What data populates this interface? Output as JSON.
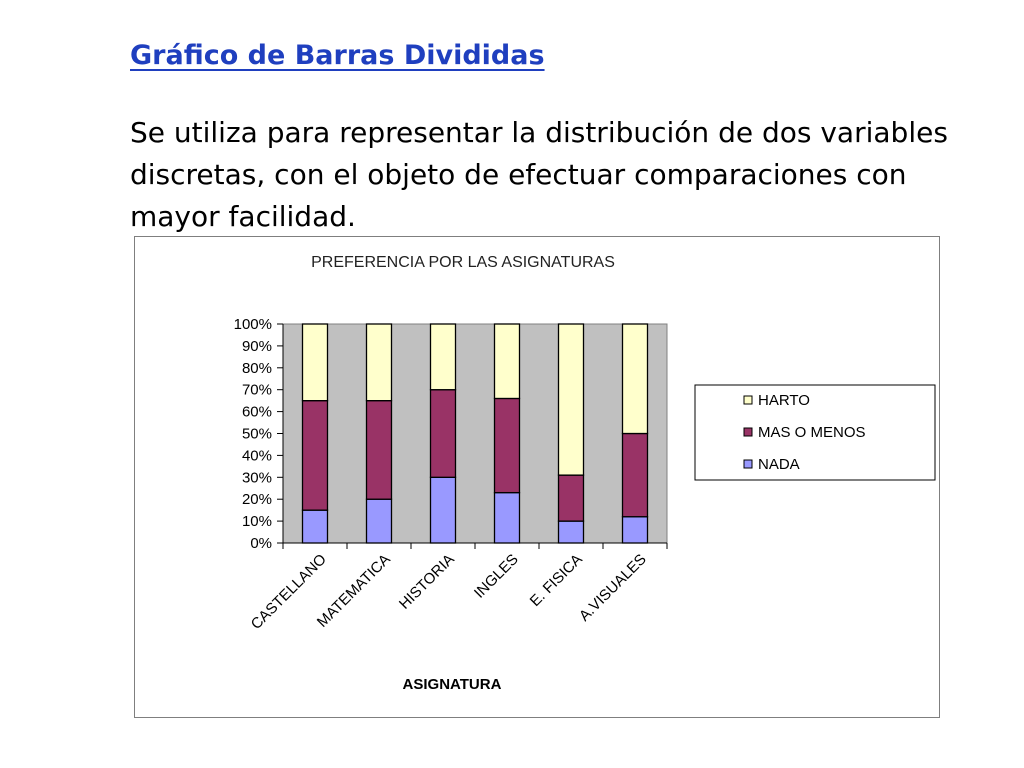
{
  "slide": {
    "title": "Gráfico de Barras Divididas",
    "body": "Se utiliza para representar la distribución de dos variables discretas, con el objeto de efectuar comparaciones con mayor facilidad."
  },
  "chart_data": {
    "type": "bar",
    "stacked": true,
    "percent_stacked": true,
    "title": "PREFERENCIA POR LAS ASIGNATURAS",
    "xlabel": "ASIGNATURA",
    "ylabel": "",
    "ylim": [
      0,
      100
    ],
    "yticks": [
      "0%",
      "10%",
      "20%",
      "30%",
      "40%",
      "50%",
      "60%",
      "70%",
      "80%",
      "90%",
      "100%"
    ],
    "categories": [
      "CASTELLANO",
      "MATEMATICA",
      "HISTORIA",
      "INGLES",
      "E. FISICA",
      "A.VISUALES"
    ],
    "series": [
      {
        "name": "NADA",
        "color": "#9999ff",
        "values": [
          15,
          20,
          30,
          23,
          10,
          12
        ]
      },
      {
        "name": "MAS O MENOS",
        "color": "#993366",
        "values": [
          50,
          45,
          40,
          43,
          21,
          38
        ]
      },
      {
        "name": "HARTO",
        "color": "#ffffcc",
        "values": [
          35,
          35,
          30,
          34,
          69,
          50
        ]
      }
    ],
    "legend_order": [
      "HARTO",
      "MAS O MENOS",
      "NADA"
    ],
    "legend_position": "right",
    "plot_background": "#c0c0c0",
    "grid": false
  }
}
